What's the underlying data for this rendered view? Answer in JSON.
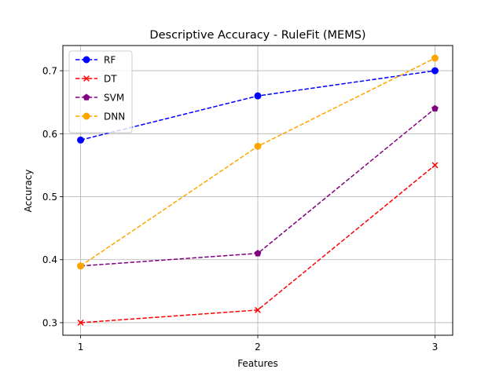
{
  "chart_data": {
    "type": "line",
    "title": "Descriptive Accuracy - RuleFit (MEMS)",
    "xlabel": "Features",
    "ylabel": "Accuracy",
    "x": [
      1,
      2,
      3
    ],
    "x_ticks": [
      "1",
      "2",
      "3"
    ],
    "y_ticks": [
      "0.3",
      "0.4",
      "0.5",
      "0.6",
      "0.7"
    ],
    "xlim": [
      0.9,
      3.1
    ],
    "ylim": [
      0.28,
      0.74
    ],
    "grid": true,
    "legend_position": "top-left",
    "series": [
      {
        "name": "RF",
        "values": [
          0.59,
          0.66,
          0.7
        ],
        "color": "#0000ff",
        "marker": "circle",
        "linestyle": "dashed"
      },
      {
        "name": "DT",
        "values": [
          0.3,
          0.32,
          0.55
        ],
        "color": "#ff0000",
        "marker": "x",
        "linestyle": "dashed"
      },
      {
        "name": "SVM",
        "values": [
          0.39,
          0.41,
          0.64
        ],
        "color": "#800080",
        "marker": "pentagon",
        "linestyle": "dashed"
      },
      {
        "name": "DNN",
        "values": [
          0.39,
          0.58,
          0.72
        ],
        "color": "#ffa500",
        "marker": "circle",
        "linestyle": "dashed"
      }
    ]
  }
}
